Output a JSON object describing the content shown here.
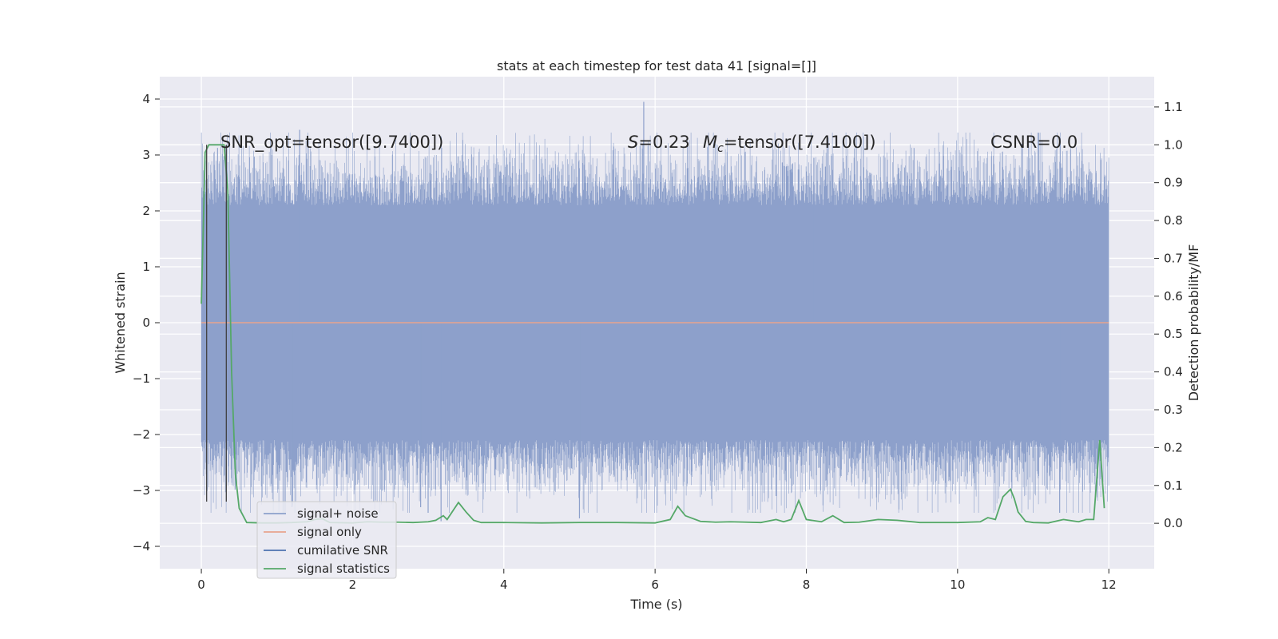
{
  "chart_data": {
    "type": "line",
    "title": "stats at each timestep for test data 41 [signal=[]]",
    "xlabel": "Time (s)",
    "ylabel": "Whitened strain",
    "y2label": "Detection probability/MF",
    "xlim": [
      -0.55,
      12.6
    ],
    "ylim": [
      -4.4,
      4.4
    ],
    "y2lim": [
      -0.12,
      1.18
    ],
    "xticks": [
      0,
      2,
      4,
      6,
      8,
      10,
      12
    ],
    "yticks": [
      -4,
      -3,
      -2,
      -1,
      0,
      1,
      2,
      3,
      4
    ],
    "y2ticks": [
      0.0,
      0.1,
      0.2,
      0.3,
      0.4,
      0.5,
      0.6,
      0.7,
      0.8,
      0.9,
      1.0,
      1.1
    ],
    "grid": true,
    "legend_position": "lower-left",
    "annotations": {
      "snr_opt": "SNR_opt=tensor([9.7400])",
      "s_value": "=0.23",
      "mc_value": "=tensor([7.4100])",
      "csnr": "CSNR=0.0"
    },
    "series": [
      {
        "name": "signal+ noise",
        "color": "#8da0cb",
        "x_range": [
          0,
          12
        ],
        "typical_abs_max": 2.1,
        "spikes": [
          [
            5.85,
            3.95
          ],
          [
            1.3,
            3.45
          ],
          [
            3.17,
            -3.55
          ],
          [
            1.2,
            -3.3
          ],
          [
            5.0,
            -3.5
          ],
          [
            11.35,
            -3.4
          ],
          [
            2.9,
            -3.3
          ],
          [
            8.1,
            2.95
          ],
          [
            7.6,
            -3.1
          ],
          [
            10.85,
            3.2
          ]
        ]
      },
      {
        "name": "signal only",
        "color": "#e8a48e",
        "x": [
          0,
          12
        ],
        "values": [
          0,
          0
        ]
      },
      {
        "name": "cumilative SNR",
        "color": "#4c72b0",
        "x": [],
        "values": []
      },
      {
        "name": "signal statistics",
        "color": "#55a868",
        "axis": "right",
        "x": [
          0.0,
          0.05,
          0.1,
          0.2,
          0.3,
          0.35,
          0.4,
          0.45,
          0.5,
          0.6,
          0.8,
          1.0,
          1.2,
          1.4,
          1.5,
          1.6,
          1.7,
          2.0,
          2.2,
          2.4,
          2.6,
          2.8,
          3.0,
          3.1,
          3.2,
          3.25,
          3.35,
          3.4,
          3.5,
          3.6,
          3.7,
          4.0,
          4.5,
          5.0,
          5.5,
          6.0,
          6.2,
          6.3,
          6.4,
          6.6,
          6.8,
          7.0,
          7.4,
          7.6,
          7.7,
          7.8,
          7.9,
          8.0,
          8.2,
          8.35,
          8.5,
          8.7,
          8.95,
          9.2,
          9.5,
          10.0,
          10.3,
          10.4,
          10.5,
          10.6,
          10.7,
          10.75,
          10.8,
          10.9,
          11.0,
          11.2,
          11.4,
          11.6,
          11.7,
          11.8,
          11.88,
          11.94
        ],
        "values": [
          0.58,
          0.98,
          1.0,
          1.0,
          1.0,
          0.88,
          0.4,
          0.13,
          0.04,
          0.002,
          0.001,
          0.001,
          0.002,
          0.004,
          0.01,
          0.012,
          0.002,
          0.001,
          0.004,
          0.003,
          0.003,
          0.002,
          0.004,
          0.008,
          0.02,
          0.01,
          0.04,
          0.055,
          0.03,
          0.008,
          0.002,
          0.002,
          0.001,
          0.002,
          0.002,
          0.001,
          0.01,
          0.045,
          0.02,
          0.005,
          0.003,
          0.004,
          0.002,
          0.01,
          0.004,
          0.01,
          0.06,
          0.01,
          0.004,
          0.02,
          0.002,
          0.003,
          0.01,
          0.008,
          0.002,
          0.002,
          0.004,
          0.015,
          0.01,
          0.07,
          0.09,
          0.065,
          0.03,
          0.005,
          0.002,
          0.001,
          0.01,
          0.004,
          0.01,
          0.01,
          0.22,
          0.04
        ]
      }
    ],
    "vlines": [
      0.07,
      0.33
    ]
  }
}
